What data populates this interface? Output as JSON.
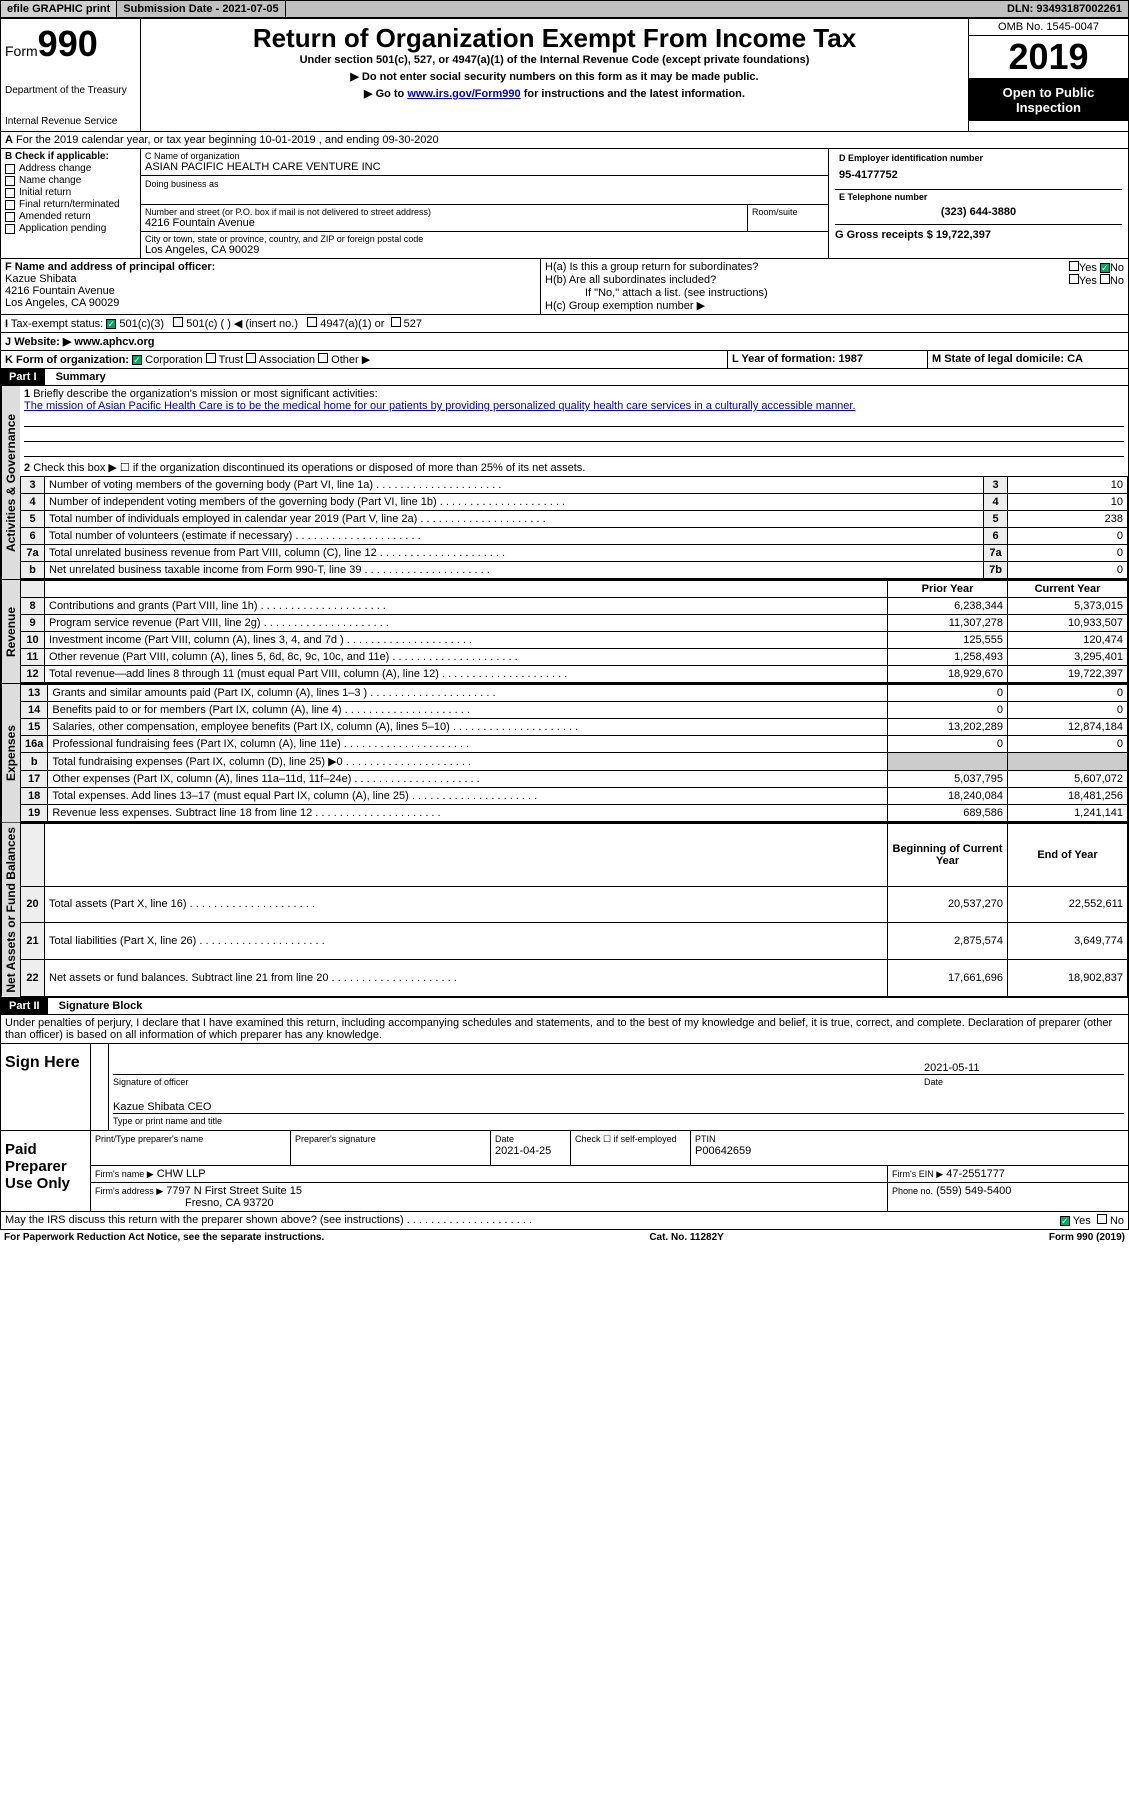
{
  "header": {
    "efile": "efile GRAPHIC print",
    "sub_label": "Submission Date - 2021-07-05",
    "dln": "DLN: 93493187002261"
  },
  "title": {
    "form_label": "Form",
    "form_no": "990",
    "main": "Return of Organization Exempt From Income Tax",
    "sub1": "Under section 501(c), 527, or 4947(a)(1) of the Internal Revenue Code (except private foundations)",
    "sub2": "▶ Do not enter social security numbers on this form as it may be made public.",
    "sub3_prefix": "▶ Go to ",
    "sub3_link": "www.irs.gov/Form990",
    "sub3_suffix": " for instructions and the latest information.",
    "dept1": "Department of the Treasury",
    "dept2": "Internal Revenue Service",
    "omb": "OMB No. 1545-0047",
    "year": "2019",
    "inspect": "Open to Public Inspection"
  },
  "lineA": "For the 2019 calendar year, or tax year beginning 10-01-2019    , and ending 09-30-2020",
  "B": {
    "label": "B Check if applicable:",
    "opts": [
      "Address change",
      "Name change",
      "Initial return",
      "Final return/terminated",
      "Amended return",
      "Application pending"
    ]
  },
  "C": {
    "name_label": "C Name of organization",
    "name": "ASIAN PACIFIC HEALTH CARE VENTURE INC",
    "dba_label": "Doing business as",
    "addr_label": "Number and street (or P.O. box if mail is not delivered to street address)",
    "room_label": "Room/suite",
    "addr": "4216 Fountain Avenue",
    "city_label": "City or town, state or province, country, and ZIP or foreign postal code",
    "city": "Los Angeles, CA  90029"
  },
  "D": {
    "label": "D Employer identification number",
    "value": "95-4177752"
  },
  "E": {
    "label": "E Telephone number",
    "value": "(323) 644-3880"
  },
  "G": {
    "label": "G Gross receipts $ 19,722,397"
  },
  "F": {
    "label": "F  Name and address of principal officer:",
    "name": "Kazue Shibata",
    "addr1": "4216 Fountain Avenue",
    "addr2": "Los Angeles, CA  90029"
  },
  "H": {
    "a": "H(a)  Is this a group return for subordinates?",
    "b": "H(b)  Are all subordinates included?",
    "b_note": "If \"No,\" attach a list. (see instructions)",
    "c": "H(c)  Group exemption number ▶",
    "yes": "Yes",
    "no": "No"
  },
  "I": {
    "label": "Tax-exempt status:",
    "o1": "501(c)(3)",
    "o2": "501(c) (  ) ◀ (insert no.)",
    "o3": "4947(a)(1) or",
    "o4": "527"
  },
  "J": {
    "label": "J",
    "text": "Website: ▶  www.aphcv.org"
  },
  "K": {
    "label": "K Form of organization:",
    "o1": "Corporation",
    "o2": "Trust",
    "o3": "Association",
    "o4": "Other ▶"
  },
  "L": {
    "label": "L Year of formation: 1987"
  },
  "M": {
    "label": "M State of legal domicile: CA"
  },
  "partI": {
    "header": "Part I",
    "title": "Summary",
    "q1": "Briefly describe the organization's mission or most significant activities:",
    "mission": "The mission of Asian Pacific Health Care is to be the medical home for our patients by providing personalized quality health care services in a culturally accessible manner.",
    "q2": "Check this box ▶ ☐  if the organization discontinued its operations or disposed of more than 25% of its net assets.",
    "lines": [
      {
        "n": "3",
        "t": "Number of voting members of the governing body (Part VI, line 1a)",
        "r": "3",
        "v": "10"
      },
      {
        "n": "4",
        "t": "Number of independent voting members of the governing body (Part VI, line 1b)",
        "r": "4",
        "v": "10"
      },
      {
        "n": "5",
        "t": "Total number of individuals employed in calendar year 2019 (Part V, line 2a)",
        "r": "5",
        "v": "238"
      },
      {
        "n": "6",
        "t": "Total number of volunteers (estimate if necessary)",
        "r": "6",
        "v": "0"
      },
      {
        "n": "7a",
        "t": "Total unrelated business revenue from Part VIII, column (C), line 12",
        "r": "7a",
        "v": "0"
      },
      {
        "n": "b",
        "t": "Net unrelated business taxable income from Form 990-T, line 39",
        "r": "7b",
        "v": "0"
      }
    ],
    "rev_hdr_prior": "Prior Year",
    "rev_hdr_curr": "Current Year",
    "rev": [
      {
        "n": "8",
        "t": "Contributions and grants (Part VIII, line 1h)",
        "p": "6,238,344",
        "c": "5,373,015"
      },
      {
        "n": "9",
        "t": "Program service revenue (Part VIII, line 2g)",
        "p": "11,307,278",
        "c": "10,933,507"
      },
      {
        "n": "10",
        "t": "Investment income (Part VIII, column (A), lines 3, 4, and 7d )",
        "p": "125,555",
        "c": "120,474"
      },
      {
        "n": "11",
        "t": "Other revenue (Part VIII, column (A), lines 5, 6d, 8c, 9c, 10c, and 11e)",
        "p": "1,258,493",
        "c": "3,295,401"
      },
      {
        "n": "12",
        "t": "Total revenue—add lines 8 through 11 (must equal Part VIII, column (A), line 12)",
        "p": "18,929,670",
        "c": "19,722,397"
      }
    ],
    "exp": [
      {
        "n": "13",
        "t": "Grants and similar amounts paid (Part IX, column (A), lines 1–3 )",
        "p": "0",
        "c": "0"
      },
      {
        "n": "14",
        "t": "Benefits paid to or for members (Part IX, column (A), line 4)",
        "p": "0",
        "c": "0"
      },
      {
        "n": "15",
        "t": "Salaries, other compensation, employee benefits (Part IX, column (A), lines 5–10)",
        "p": "13,202,289",
        "c": "12,874,184"
      },
      {
        "n": "16a",
        "t": "Professional fundraising fees (Part IX, column (A), line 11e)",
        "p": "0",
        "c": "0"
      },
      {
        "n": "b",
        "t": "Total fundraising expenses (Part IX, column (D), line 25) ▶0",
        "p": "",
        "c": "",
        "grey": true
      },
      {
        "n": "17",
        "t": "Other expenses (Part IX, column (A), lines 11a–11d, 11f–24e)",
        "p": "5,037,795",
        "c": "5,607,072"
      },
      {
        "n": "18",
        "t": "Total expenses. Add lines 13–17 (must equal Part IX, column (A), line 25)",
        "p": "18,240,084",
        "c": "18,481,256"
      },
      {
        "n": "19",
        "t": "Revenue less expenses. Subtract line 18 from line 12",
        "p": "689,586",
        "c": "1,241,141"
      }
    ],
    "na_hdr_beg": "Beginning of Current Year",
    "na_hdr_end": "End of Year",
    "na": [
      {
        "n": "20",
        "t": "Total assets (Part X, line 16)",
        "p": "20,537,270",
        "c": "22,552,611"
      },
      {
        "n": "21",
        "t": "Total liabilities (Part X, line 26)",
        "p": "2,875,574",
        "c": "3,649,774"
      },
      {
        "n": "22",
        "t": "Net assets or fund balances. Subtract line 21 from line 20",
        "p": "17,661,696",
        "c": "18,902,837"
      }
    ],
    "tab_gov": "Activities & Governance",
    "tab_rev": "Revenue",
    "tab_exp": "Expenses",
    "tab_na": "Net Assets or Fund Balances"
  },
  "partII": {
    "header": "Part II",
    "title": "Signature Block",
    "declaration": "Under penalties of perjury, I declare that I have examined this return, including accompanying schedules and statements, and to the best of my knowledge and belief, it is true, correct, and complete. Declaration of preparer (other than officer) is based on all information of which preparer has any knowledge.",
    "sign_here": "Sign Here",
    "sig_of_officer": "Signature of officer",
    "date_label": "Date",
    "date_val": "2021-05-11",
    "officer": "Kazue Shibata  CEO",
    "type_label": "Type or print name and title",
    "paid_label": "Paid Preparer Use Only",
    "prep_name_label": "Print/Type preparer's name",
    "prep_sig_label": "Preparer's signature",
    "prep_date_label": "Date",
    "prep_date": "2021-04-25",
    "self_emp": "Check ☐ if self-employed",
    "ptin_label": "PTIN",
    "ptin": "P00642659",
    "firm_name_label": "Firm's name    ▶",
    "firm_name": "CHW LLP",
    "firm_ein_label": "Firm's EIN ▶",
    "firm_ein": "47-2551777",
    "firm_addr_label": "Firm's address ▶",
    "firm_addr1": "7797 N First Street Suite 15",
    "firm_addr2": "Fresno, CA  93720",
    "phone_label": "Phone no.",
    "phone": "(559) 549-5400",
    "may_discuss": "May the IRS discuss this return with the preparer shown above? (see instructions)",
    "yes": "Yes",
    "no": "No"
  },
  "footer": {
    "pra": "For Paperwork Reduction Act Notice, see the separate instructions.",
    "cat": "Cat. No. 11282Y",
    "form": "Form 990 (2019)"
  }
}
